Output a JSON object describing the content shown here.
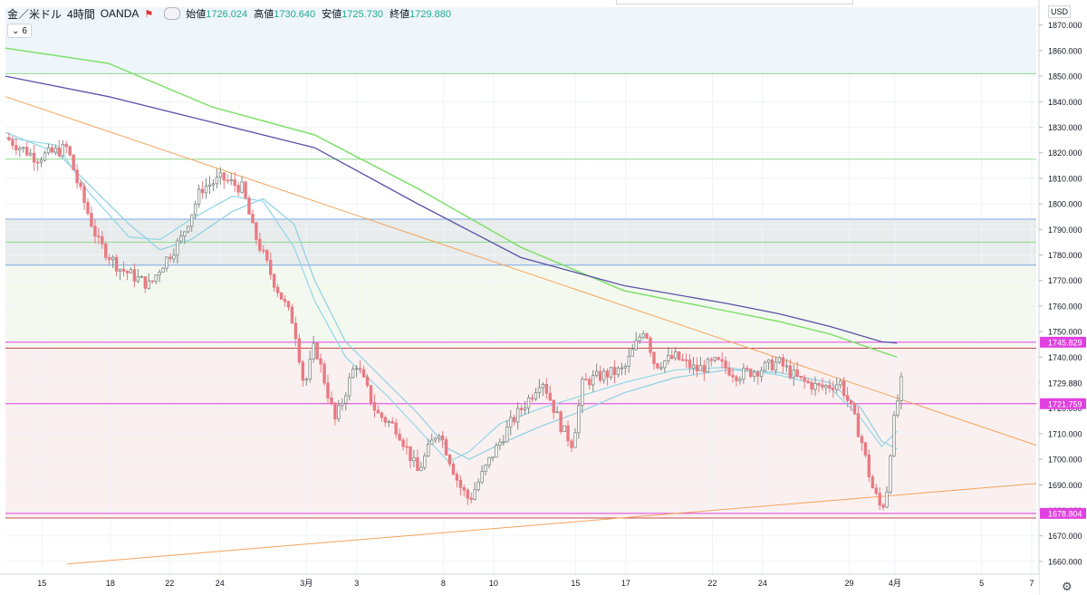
{
  "header": {
    "symbol": "金／米ドル",
    "interval": "4時間",
    "source": "OANDA",
    "open_label": "始値",
    "open_value": "1726.024",
    "high_label": "高値",
    "high_value": "1730.640",
    "low_label": "安値",
    "low_value": "1725.730",
    "close_label": "終値",
    "close_value": "1729.880",
    "indicator_count": "6"
  },
  "currency": "USD",
  "colors": {
    "background": "#ffffff",
    "upper_band": "#eef5fb",
    "gray_zone": "#e8ecec",
    "green_zone": "#f4f9ef",
    "pink_zone": "#fbf0f0",
    "candle_up": "#7f8b84",
    "candle_down": "#e97a82",
    "ma_fast": "#8fd7e6",
    "ma_slow": "#8fcfe0",
    "ma_100": "#5a52a8",
    "ma_200": "#7fe06a",
    "trendline": "#f4a35a",
    "green_line": "#8fd98a",
    "blue_line": "#7aa7e0",
    "magenta_line": "#e040e0",
    "brown_line": "#c05050",
    "price_label_bg": "#e040e0",
    "current_price_bg": "#ffffff"
  },
  "chart_data": {
    "type": "candlestick",
    "y_min": 1655,
    "y_max": 1877,
    "y_ticks": [
      "1870.000",
      "1860.000",
      "1850.000",
      "1840.000",
      "1830.000",
      "1820.000",
      "1810.000",
      "1800.000",
      "1790.000",
      "1780.000",
      "1770.000",
      "1760.000",
      "1750.000",
      "1740.000",
      "1730.000",
      "1720.000",
      "1710.000",
      "1700.000",
      "1690.000",
      "1680.000",
      "1670.000",
      "1660.000"
    ],
    "y_tick_values": [
      1870,
      1860,
      1850,
      1840,
      1830,
      1820,
      1810,
      1800,
      1790,
      1780,
      1770,
      1760,
      1750,
      1740,
      1730,
      1720,
      1710,
      1700,
      1690,
      1680,
      1670,
      1660
    ],
    "x_ticks": [
      {
        "label": "15",
        "pos": 0.0354
      },
      {
        "label": "18",
        "pos": 0.1018
      },
      {
        "label": "22",
        "pos": 0.1593
      },
      {
        "label": "24",
        "pos": 0.208
      },
      {
        "label": "3月",
        "pos": 0.292
      },
      {
        "label": "3",
        "pos": 0.3407
      },
      {
        "label": "8",
        "pos": 0.4248
      },
      {
        "label": "10",
        "pos": 0.4735
      },
      {
        "label": "15",
        "pos": 0.5531
      },
      {
        "label": "17",
        "pos": 0.6018
      },
      {
        "label": "22",
        "pos": 0.6858
      },
      {
        "label": "24",
        "pos": 0.7345
      },
      {
        "label": "29",
        "pos": 0.8186
      },
      {
        "label": "4月",
        "pos": 0.8628
      },
      {
        "label": "5",
        "pos": 0.9469
      },
      {
        "label": "7",
        "pos": 0.9956
      }
    ],
    "price_labels": [
      {
        "text": "1745.829",
        "value": 1745.829,
        "kind": "magenta"
      },
      {
        "text": "1729.880",
        "value": 1729.88,
        "kind": "current"
      },
      {
        "text": "1721.759",
        "value": 1721.759,
        "kind": "magenta"
      },
      {
        "text": "1678.804",
        "value": 1678.804,
        "kind": "magenta"
      }
    ],
    "zones": [
      {
        "from": 1851,
        "to": 1877,
        "color_key": "upper_band"
      },
      {
        "from": 1776,
        "to": 1794,
        "color_key": "gray_zone"
      },
      {
        "from": 1744,
        "to": 1776,
        "color_key": "green_zone"
      },
      {
        "from": 1677,
        "to": 1744,
        "color_key": "pink_zone"
      }
    ],
    "h_lines": [
      {
        "value": 1851,
        "color_key": "green_line"
      },
      {
        "value": 1817.5,
        "color_key": "green_line"
      },
      {
        "value": 1794,
        "color_key": "blue_line"
      },
      {
        "value": 1785,
        "color_key": "green_line"
      },
      {
        "value": 1776,
        "color_key": "blue_line"
      },
      {
        "value": 1745.829,
        "color_key": "magenta_line"
      },
      {
        "value": 1743.5,
        "color_key": "brown_line"
      },
      {
        "value": 1721.759,
        "color_key": "magenta_line"
      },
      {
        "value": 1678.804,
        "color_key": "magenta_line"
      },
      {
        "value": 1677,
        "color_key": "brown_line"
      }
    ],
    "trendlines": [
      {
        "x1": 0.0,
        "y1": 1842,
        "x2": 1.0,
        "y2": 1705.5
      },
      {
        "x1": 0.06,
        "y1": 1659,
        "x2": 1.0,
        "y2": 1690.5
      }
    ],
    "ma_200": [
      [
        0.0,
        1861
      ],
      [
        0.1,
        1855
      ],
      [
        0.2,
        1838
      ],
      [
        0.3,
        1827
      ],
      [
        0.4,
        1806
      ],
      [
        0.5,
        1783
      ],
      [
        0.6,
        1766
      ],
      [
        0.7,
        1758
      ],
      [
        0.75,
        1754
      ],
      [
        0.8,
        1749
      ],
      [
        0.85,
        1742
      ],
      [
        0.865,
        1740
      ]
    ],
    "ma_100": [
      [
        0.0,
        1850
      ],
      [
        0.1,
        1842
      ],
      [
        0.2,
        1832
      ],
      [
        0.3,
        1822
      ],
      [
        0.4,
        1800
      ],
      [
        0.5,
        1779
      ],
      [
        0.6,
        1768
      ],
      [
        0.7,
        1761
      ],
      [
        0.75,
        1757
      ],
      [
        0.8,
        1752
      ],
      [
        0.85,
        1746
      ],
      [
        0.865,
        1745.5
      ]
    ],
    "ma_fast": [
      [
        0.0,
        1826
      ],
      [
        0.05,
        1823
      ],
      [
        0.08,
        1805
      ],
      [
        0.12,
        1787
      ],
      [
        0.15,
        1786
      ],
      [
        0.18,
        1794
      ],
      [
        0.22,
        1803
      ],
      [
        0.25,
        1801
      ],
      [
        0.28,
        1783
      ],
      [
        0.3,
        1762
      ],
      [
        0.33,
        1740
      ],
      [
        0.37,
        1725
      ],
      [
        0.4,
        1712
      ],
      [
        0.43,
        1699
      ],
      [
        0.45,
        1703
      ],
      [
        0.48,
        1714
      ],
      [
        0.52,
        1720
      ],
      [
        0.56,
        1725
      ],
      [
        0.6,
        1730
      ],
      [
        0.65,
        1735
      ],
      [
        0.7,
        1736
      ],
      [
        0.75,
        1733
      ],
      [
        0.8,
        1728
      ],
      [
        0.83,
        1716
      ],
      [
        0.85,
        1705
      ],
      [
        0.865,
        1711
      ]
    ],
    "ma_slow": [
      [
        0.0,
        1828
      ],
      [
        0.05,
        1820
      ],
      [
        0.08,
        1808
      ],
      [
        0.12,
        1792
      ],
      [
        0.15,
        1782
      ],
      [
        0.18,
        1786
      ],
      [
        0.22,
        1797
      ],
      [
        0.25,
        1802
      ],
      [
        0.28,
        1792
      ],
      [
        0.3,
        1770
      ],
      [
        0.33,
        1746
      ],
      [
        0.37,
        1730
      ],
      [
        0.4,
        1718
      ],
      [
        0.43,
        1704
      ],
      [
        0.45,
        1700
      ],
      [
        0.48,
        1706
      ],
      [
        0.52,
        1713
      ],
      [
        0.56,
        1719
      ],
      [
        0.6,
        1726
      ],
      [
        0.65,
        1732
      ],
      [
        0.7,
        1735
      ],
      [
        0.75,
        1734
      ],
      [
        0.8,
        1730
      ],
      [
        0.83,
        1720
      ],
      [
        0.85,
        1707
      ],
      [
        0.865,
        1704
      ]
    ],
    "price_path": [
      [
        0.0,
        1826
      ],
      [
        0.03,
        1818
      ],
      [
        0.06,
        1822
      ],
      [
        0.07,
        1808
      ],
      [
        0.09,
        1785
      ],
      [
        0.11,
        1775
      ],
      [
        0.14,
        1768
      ],
      [
        0.15,
        1775
      ],
      [
        0.17,
        1786
      ],
      [
        0.19,
        1806
      ],
      [
        0.21,
        1810
      ],
      [
        0.23,
        1806
      ],
      [
        0.24,
        1790
      ],
      [
        0.26,
        1770
      ],
      [
        0.28,
        1753
      ],
      [
        0.29,
        1728
      ],
      [
        0.3,
        1745
      ],
      [
        0.32,
        1715
      ],
      [
        0.34,
        1738
      ],
      [
        0.36,
        1718
      ],
      [
        0.38,
        1712
      ],
      [
        0.4,
        1695
      ],
      [
        0.42,
        1712
      ],
      [
        0.44,
        1690
      ],
      [
        0.45,
        1684
      ],
      [
        0.47,
        1700
      ],
      [
        0.49,
        1714
      ],
      [
        0.51,
        1725
      ],
      [
        0.52,
        1732
      ],
      [
        0.54,
        1712
      ],
      [
        0.55,
        1706
      ],
      [
        0.56,
        1730
      ],
      [
        0.58,
        1733
      ],
      [
        0.6,
        1735
      ],
      [
        0.62,
        1752
      ],
      [
        0.63,
        1737
      ],
      [
        0.65,
        1740
      ],
      [
        0.67,
        1735
      ],
      [
        0.69,
        1738
      ],
      [
        0.71,
        1733
      ],
      [
        0.73,
        1735
      ],
      [
        0.75,
        1738
      ],
      [
        0.77,
        1731
      ],
      [
        0.79,
        1728
      ],
      [
        0.81,
        1730
      ],
      [
        0.82,
        1720
      ],
      [
        0.83,
        1708
      ],
      [
        0.84,
        1690
      ],
      [
        0.85,
        1680
      ],
      [
        0.855,
        1688
      ],
      [
        0.86,
        1710
      ],
      [
        0.865,
        1722
      ],
      [
        0.869,
        1729.88
      ]
    ]
  }
}
